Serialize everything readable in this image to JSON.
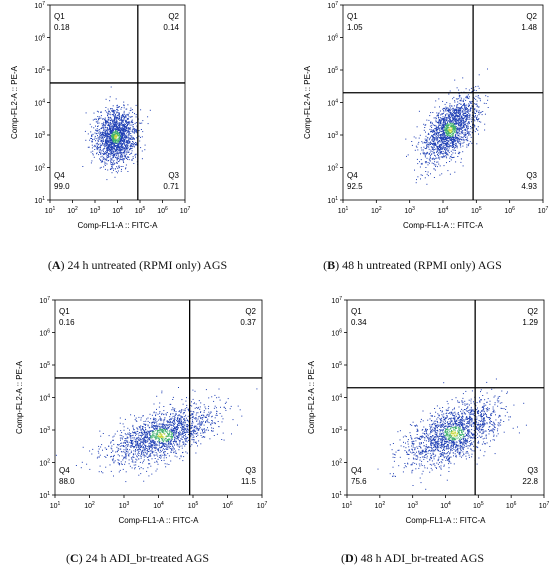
{
  "colors": {
    "dot_main": "#1f3fb5",
    "dot_dense": "#3caf6a",
    "dot_core": "#c8d83a",
    "gate": "#000000",
    "frame": "#000000"
  },
  "chart_data": [
    {
      "type": "scatter",
      "panel": "A",
      "caption": "24 h untreated (RPMI only) AGS",
      "xlabel": "Comp-FL1-A :: FITC-A",
      "ylabel": "Comp-FL2-A :: PE-A",
      "x_scale": "log",
      "y_scale": "log",
      "xlim": [
        10,
        10000000
      ],
      "ylim": [
        10,
        10000000
      ],
      "gate": {
        "x": 80000,
        "y": 40000
      },
      "quadrants": {
        "Q1": "0.18",
        "Q2": "0.14",
        "Q3": "0.71",
        "Q4": "99.0"
      },
      "population": {
        "center_x": 8000,
        "center_y": 900,
        "spread_x_decades": 0.45,
        "spread_y_decades": 0.42,
        "corr": 0.1
      }
    },
    {
      "type": "scatter",
      "panel": "B",
      "caption": "48 h untreated (RPMI only) AGS",
      "xlabel": "Comp-FL1-A :: FITC-A",
      "ylabel": "Comp-FL2-A :: PE-A",
      "x_scale": "log",
      "y_scale": "log",
      "xlim": [
        10,
        10000000
      ],
      "ylim": [
        10,
        10000000
      ],
      "gate": {
        "x": 80000,
        "y": 20000
      },
      "quadrants": {
        "Q1": "1.05",
        "Q2": "1.48",
        "Q3": "4.93",
        "Q4": "92.5"
      },
      "population": {
        "center_x": 16000,
        "center_y": 1500,
        "spread_x_decades": 0.4,
        "spread_y_decades": 0.5,
        "corr": 0.55
      }
    },
    {
      "type": "scatter",
      "panel": "C",
      "caption": "24 h ADI_br-treated AGS",
      "xlabel": "Comp-FL1-A :: FITC-A",
      "ylabel": "Comp-FL2-A :: PE-A",
      "x_scale": "log",
      "y_scale": "log",
      "xlim": [
        10,
        10000000
      ],
      "ylim": [
        10,
        10000000
      ],
      "gate": {
        "x": 80000,
        "y": 40000
      },
      "quadrants": {
        "Q1": "0.16",
        "Q2": "0.37",
        "Q3": "11.5",
        "Q4": "88.0"
      },
      "population": {
        "center_x": 12000,
        "center_y": 700,
        "spread_x_decades": 0.75,
        "spread_y_decades": 0.45,
        "corr": 0.6
      }
    },
    {
      "type": "scatter",
      "panel": "D",
      "caption": "48 h ADI_br-treated AGS",
      "xlabel": "Comp-FL1-A :: FITC-A",
      "ylabel": "Comp-FL2-A :: PE-A",
      "x_scale": "log",
      "y_scale": "log",
      "xlim": [
        10,
        10000000
      ],
      "ylim": [
        10,
        10000000
      ],
      "gate": {
        "x": 80000,
        "y": 20000
      },
      "quadrants": {
        "Q1": "0.34",
        "Q2": "1.29",
        "Q3": "22.8",
        "Q4": "75.6"
      },
      "population": {
        "center_x": 18000,
        "center_y": 800,
        "spread_x_decades": 0.7,
        "spread_y_decades": 0.5,
        "corr": 0.55
      }
    }
  ]
}
